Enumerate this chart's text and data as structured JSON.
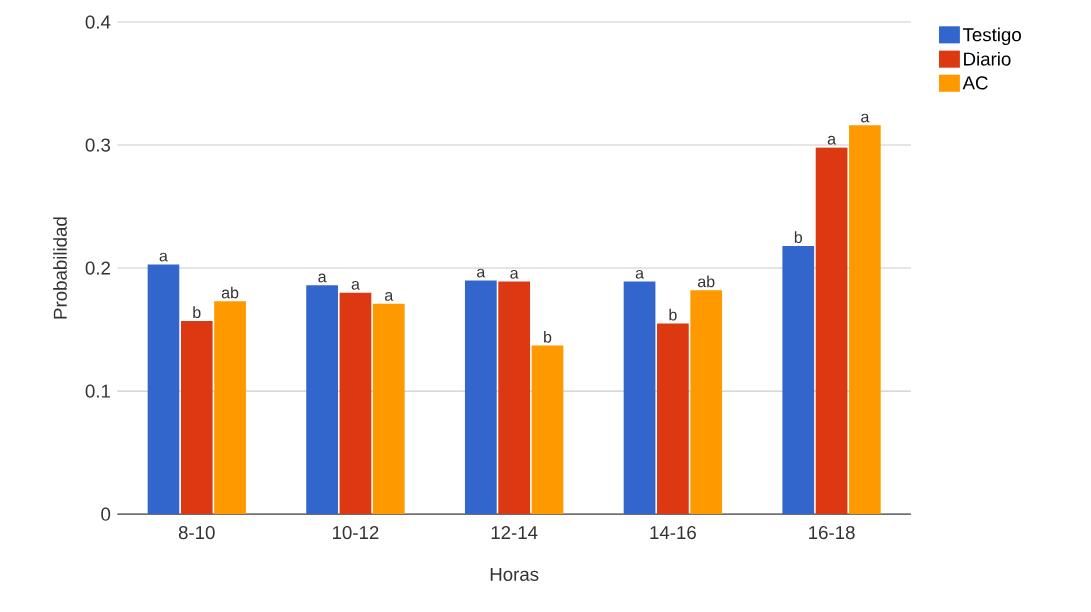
{
  "chart_data": {
    "type": "bar",
    "xlabel": "Horas",
    "ylabel": "Probabilidad",
    "categories": [
      "8-10",
      "10-12",
      "12-14",
      "14-16",
      "16-18"
    ],
    "series": [
      {
        "name": "Testigo",
        "color": "#3366cc",
        "values": [
          0.203,
          0.186,
          0.19,
          0.189,
          0.218
        ],
        "value_labels": [
          "a",
          "a",
          "a",
          "a",
          "b"
        ]
      },
      {
        "name": "Diario",
        "color": "#dc3912",
        "values": [
          0.157,
          0.18,
          0.189,
          0.155,
          0.298
        ],
        "value_labels": [
          "b",
          "a",
          "a",
          "b",
          "a"
        ]
      },
      {
        "name": "AC",
        "color": "#ff9900",
        "values": [
          0.173,
          0.171,
          0.137,
          0.182,
          0.316
        ],
        "value_labels": [
          "ab",
          "a",
          "b",
          "ab",
          "a"
        ]
      }
    ],
    "ylim": [
      0,
      0.4
    ],
    "yticks": [
      0,
      0.1,
      0.2,
      0.3,
      0.4
    ],
    "grid": "y",
    "legend": "top right"
  }
}
